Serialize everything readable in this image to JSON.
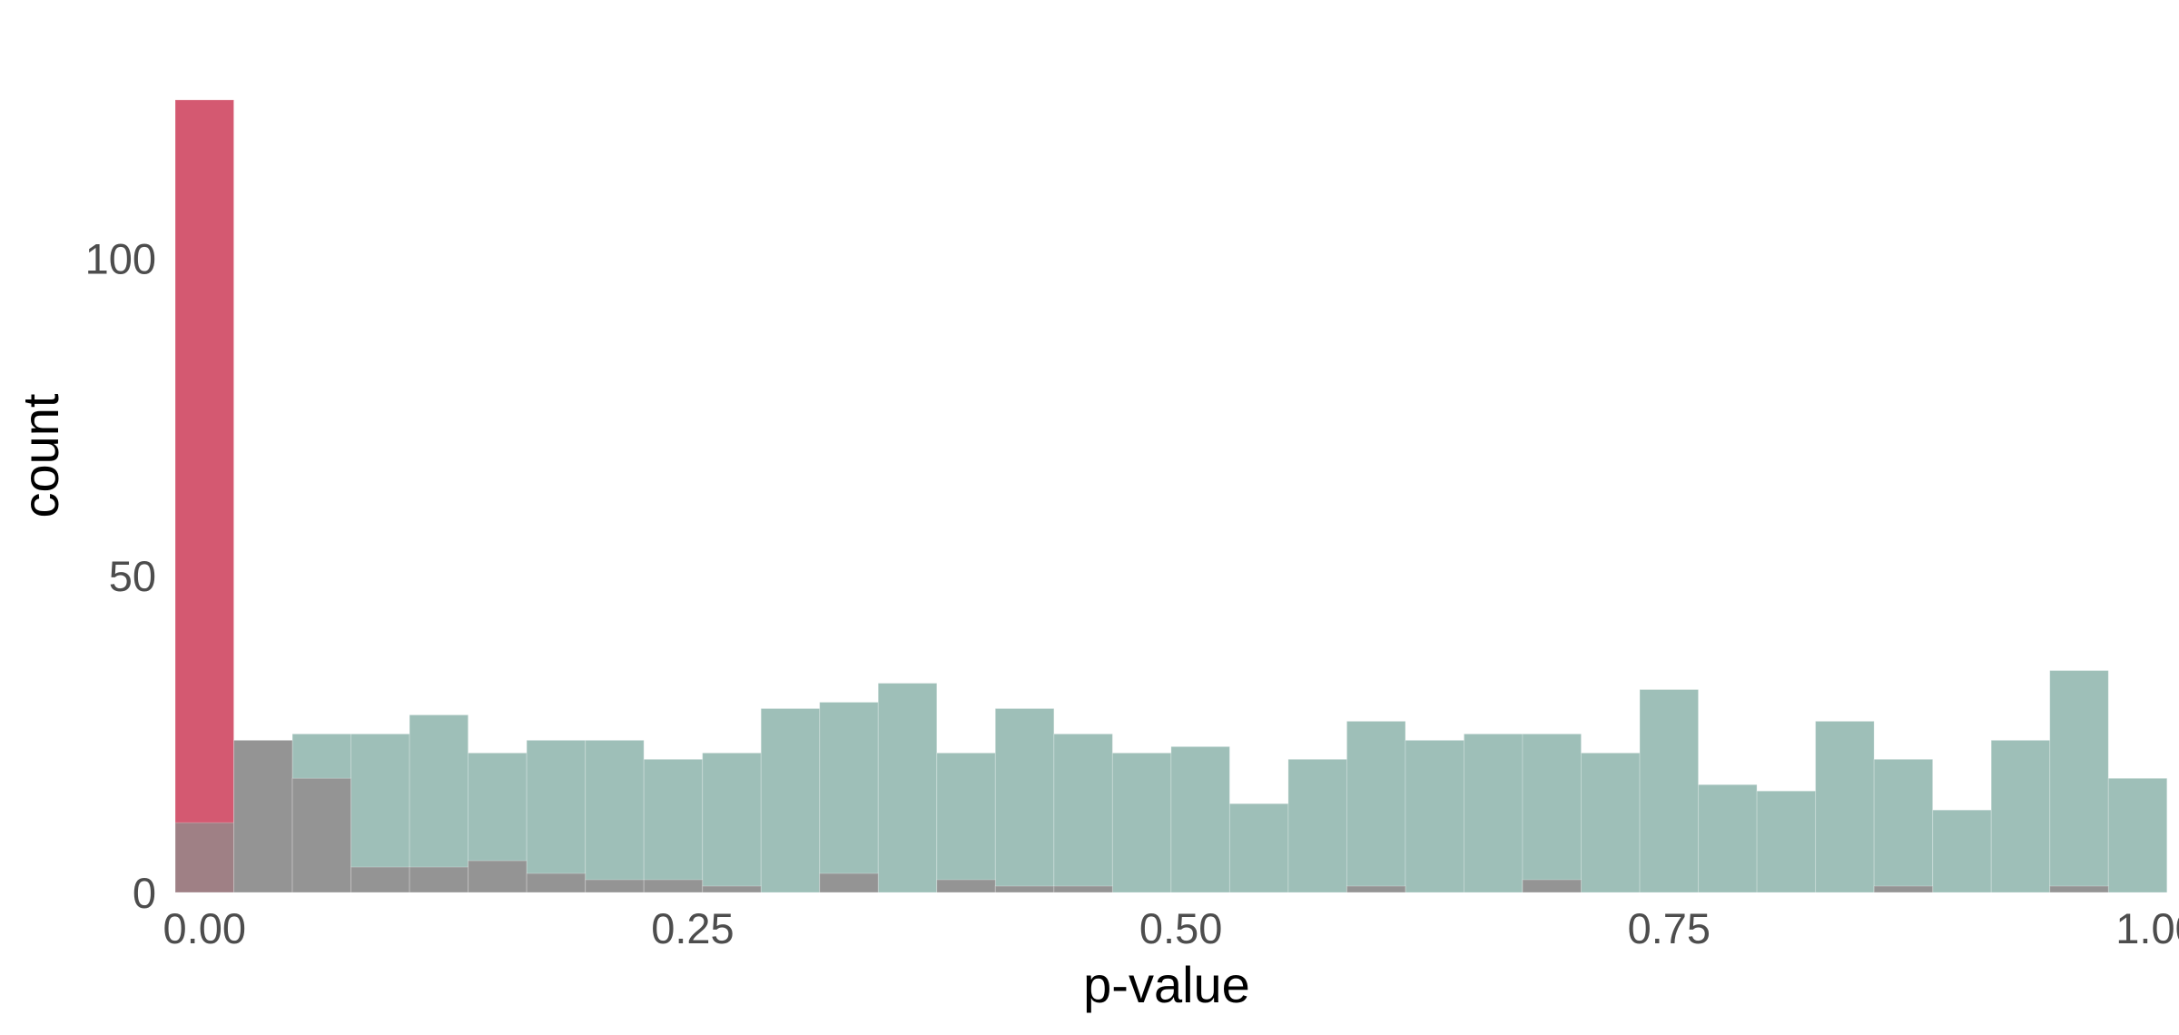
{
  "chart_data": {
    "type": "bar",
    "title": "",
    "xlabel": "p-value",
    "ylabel": "count",
    "xlim": [
      -0.015,
      1.0
    ],
    "ylim": [
      0,
      125
    ],
    "bin_width": 0.03,
    "grid": false,
    "legend": "none",
    "x_ticks": [
      {
        "value": 0.0,
        "label": "0.00"
      },
      {
        "value": 0.25,
        "label": "0.25"
      },
      {
        "value": 0.5,
        "label": "0.50"
      },
      {
        "value": 0.75,
        "label": "0.75"
      },
      {
        "value": 1.0,
        "label": "1.00"
      }
    ],
    "y_ticks": [
      {
        "value": 0,
        "label": "0"
      },
      {
        "value": 50,
        "label": "50"
      },
      {
        "value": 100,
        "label": "100"
      }
    ],
    "bin_starts": [
      -0.015,
      0.015,
      0.045,
      0.075,
      0.105,
      0.135,
      0.165,
      0.195,
      0.225,
      0.255,
      0.285,
      0.315,
      0.345,
      0.375,
      0.405,
      0.435,
      0.465,
      0.495,
      0.525,
      0.555,
      0.585,
      0.615,
      0.645,
      0.675,
      0.705,
      0.735,
      0.765,
      0.795,
      0.825,
      0.855,
      0.885,
      0.915,
      0.945,
      0.975
    ],
    "series": [
      {
        "color": "#C9304D",
        "values": [
          125,
          0,
          0,
          0,
          0,
          0,
          0,
          0,
          0,
          0,
          0,
          0,
          0,
          0,
          0,
          0,
          0,
          0,
          0,
          0,
          0,
          0,
          0,
          0,
          0,
          0,
          0,
          0,
          0,
          0,
          0,
          0,
          0,
          0
        ]
      },
      {
        "color": "#86AFA6",
        "values": [
          0,
          24,
          25,
          25,
          28,
          22,
          24,
          24,
          21,
          22,
          29,
          30,
          33,
          22,
          29,
          25,
          22,
          23,
          14,
          21,
          27,
          24,
          25,
          25,
          22,
          32,
          17,
          16,
          27,
          21,
          13,
          24,
          35,
          18
        ]
      },
      {
        "color": "#918A8B",
        "values": [
          11,
          24,
          18,
          4,
          4,
          5,
          3,
          2,
          2,
          1,
          0,
          3,
          0,
          2,
          1,
          1,
          0,
          0,
          0,
          0,
          1,
          0,
          0,
          2,
          0,
          0,
          0,
          0,
          0,
          1,
          0,
          0,
          1,
          0
        ]
      }
    ]
  }
}
